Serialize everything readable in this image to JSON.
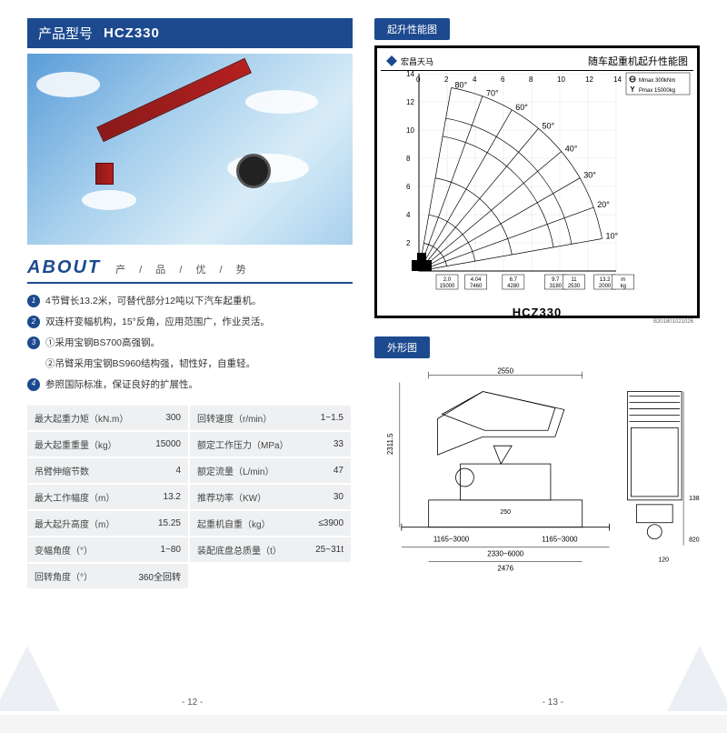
{
  "header": {
    "label": "产品型号",
    "model": "HCZ330"
  },
  "about": {
    "title": "ABOUT",
    "subtitle": "产 / 品 / 优 / 势",
    "features": [
      {
        "num": "1",
        "text": "4节臂长13.2米，可替代部分12吨以下汽车起重机。"
      },
      {
        "num": "2",
        "text": "双连杆变幅机构，15°反角，应用范围广，作业灵活。"
      },
      {
        "num": "3",
        "text": "①采用宝钢BS700高强钢。"
      },
      {
        "num": "",
        "text": "②吊臂采用宝钢BS960结构强，韧性好，自重轻。"
      },
      {
        "num": "4",
        "text": "参照国际标准，保证良好的扩展性。"
      }
    ]
  },
  "specs": [
    {
      "label": "最大起重力矩（kN.m）",
      "value": "300"
    },
    {
      "label": "回转速度（r/min）",
      "value": "1~1.5"
    },
    {
      "label": "最大起重重量（kg）",
      "value": "15000"
    },
    {
      "label": "额定工作压力（MPa）",
      "value": "33"
    },
    {
      "label": "吊臂伸缩节数",
      "value": "4"
    },
    {
      "label": "额定流量（L/min）",
      "value": "47"
    },
    {
      "label": "最大工作幅度（m）",
      "value": "13.2"
    },
    {
      "label": "推荐功率（KW）",
      "value": "30"
    },
    {
      "label": "最大起升高度（m）",
      "value": "15.25"
    },
    {
      "label": "起重机自重（kg）",
      "value": "≤3900"
    },
    {
      "label": "变幅角度（°）",
      "value": "1~80"
    },
    {
      "label": "装配底盘总质量（t）",
      "value": "25~31t"
    },
    {
      "label": "回转角度（°）",
      "value": "360全回转"
    }
  ],
  "perf": {
    "tab": "起升性能图",
    "brand": "宏昌天马",
    "chart_title": "随车起重机起升性能图",
    "legend1": "Mmax 300kNm",
    "legend2": "Pmax 15000kg",
    "model": "HCZ330",
    "code": "B201801021026",
    "angles": [
      "80°",
      "70°",
      "60°",
      "50°",
      "40°",
      "30°",
      "20°",
      "10°"
    ],
    "y_ticks": [
      "2",
      "4",
      "6",
      "8",
      "10",
      "12",
      "14"
    ],
    "x_ticks": [
      "0",
      "2",
      "4",
      "6",
      "8",
      "10",
      "12",
      "14"
    ],
    "x_labels": [
      {
        "t": "2.0",
        "b": "15000"
      },
      {
        "t": "4.04",
        "b": "7460"
      },
      {
        "t": "6.7",
        "b": "4280"
      },
      {
        "t": "9.7",
        "b": "3180"
      },
      {
        "t": "11",
        "b": "2530"
      },
      {
        "t": "13.2",
        "b": "2000"
      },
      {
        "t": "m",
        "b": "kg"
      }
    ]
  },
  "outline": {
    "tab": "外形图",
    "dims": {
      "top_width": "2550",
      "height": "2311.5",
      "mid": "250",
      "span_left": "1165~3000",
      "span_right": "1165~3000",
      "span_total": "2330~6000",
      "base": "2476",
      "side_h1": "138",
      "side_h2": "820",
      "side_small": "120"
    }
  },
  "pages": {
    "left": "- 12 -",
    "right": "- 13 -"
  }
}
